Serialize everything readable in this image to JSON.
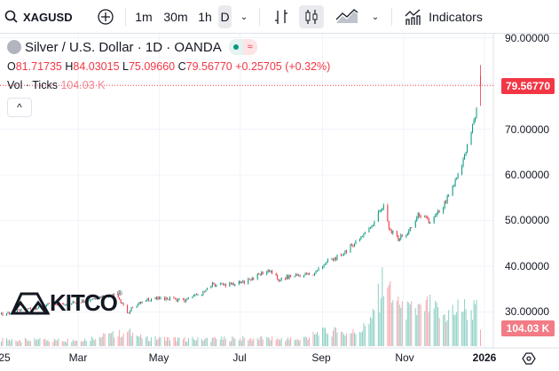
{
  "toolbar": {
    "symbol": "XAGUSD",
    "intervals": [
      "1m",
      "30m",
      "1h",
      "D"
    ],
    "selected_interval": "D",
    "indicators_label": "Indicators",
    "icons": [
      "search-icon",
      "add-compare-icon",
      "chevron-down-icon",
      "bar-chart-icon",
      "candles-icon",
      "area-chart-icon",
      "chevron-down-icon",
      "indicators-icon"
    ]
  },
  "legend": {
    "title": "Silver / U.S. Dollar · 1D · OANDA",
    "o_label": "O",
    "o": "81.71735",
    "h_label": "H",
    "h": "84.03015",
    "l_label": "L",
    "l": "75.09660",
    "c_label": "C",
    "c": "79.56770",
    "change": "+0.25705 (+0.32%)",
    "vol_label": "Vol · Ticks",
    "vol_value": "104.03 K",
    "collapse_label": "^"
  },
  "price_axis": {
    "labels": [
      "90.00000",
      "70.00000",
      "60.00000",
      "50.00000",
      "40.00000",
      "30.00000"
    ],
    "last_price": "79.56770",
    "last_volume": "104.03 K"
  },
  "time_axis": {
    "labels": [
      "25",
      "Mar",
      "May",
      "Jul",
      "Sep",
      "Nov",
      "2026"
    ]
  },
  "logo": "KITCO",
  "colors": {
    "up": "#089981",
    "down": "#f23645",
    "up_volume": "#8ccfc4",
    "down_volume": "#f5a6ad"
  },
  "chart_data": {
    "type": "candlestick",
    "symbol": "XAGUSD",
    "interval": "1D",
    "ylim": [
      27,
      92
    ],
    "close_keypoints": [
      [
        "2025-01-02",
        29.5
      ],
      [
        "2025-01-20",
        30.5
      ],
      [
        "2025-02-05",
        31.5
      ],
      [
        "2025-02-25",
        32.0
      ],
      [
        "2025-03-10",
        32.8
      ],
      [
        "2025-03-27",
        34.0
      ],
      [
        "2025-04-03",
        32.0
      ],
      [
        "2025-04-07",
        29.5
      ],
      [
        "2025-04-10",
        31.0
      ],
      [
        "2025-04-22",
        32.8
      ],
      [
        "2025-05-05",
        33.0
      ],
      [
        "2025-05-20",
        32.5
      ],
      [
        "2025-06-05",
        34.5
      ],
      [
        "2025-06-10",
        36.0
      ],
      [
        "2025-06-20",
        36.0
      ],
      [
        "2025-07-01",
        36.3
      ],
      [
        "2025-07-11",
        37.5
      ],
      [
        "2025-07-22",
        39.2
      ],
      [
        "2025-07-30",
        37.0
      ],
      [
        "2025-08-10",
        38.0
      ],
      [
        "2025-08-25",
        38.3
      ],
      [
        "2025-09-02",
        40.5
      ],
      [
        "2025-09-15",
        42.5
      ],
      [
        "2025-09-30",
        46.5
      ],
      [
        "2025-10-08",
        49.0
      ],
      [
        "2025-10-17",
        53.5
      ],
      [
        "2025-10-21",
        48.0
      ],
      [
        "2025-10-28",
        46.0
      ],
      [
        "2025-11-05",
        47.5
      ],
      [
        "2025-11-13",
        51.5
      ],
      [
        "2025-11-21",
        49.5
      ],
      [
        "2025-12-01",
        53.0
      ],
      [
        "2025-12-10",
        58.5
      ],
      [
        "2025-12-17",
        64.0
      ],
      [
        "2025-12-24",
        71.5
      ],
      [
        "2025-12-29",
        79.5677
      ]
    ],
    "last_candle": {
      "date": "2025-12-29",
      "open": 81.71735,
      "high": 84.03015,
      "low": 75.0966,
      "close": 79.5677
    },
    "volume_keypoints_k": [
      [
        "2025-01-02",
        40
      ],
      [
        "2025-03-01",
        40
      ],
      [
        "2025-04-08",
        90
      ],
      [
        "2025-04-20",
        50
      ],
      [
        "2025-06-01",
        45
      ],
      [
        "2025-07-01",
        50
      ],
      [
        "2025-08-15",
        45
      ],
      [
        "2025-09-05",
        100
      ],
      [
        "2025-09-20",
        80
      ],
      [
        "2025-10-01",
        110
      ],
      [
        "2025-10-10",
        200
      ],
      [
        "2025-10-17",
        440
      ],
      [
        "2025-10-25",
        330
      ],
      [
        "2025-11-05",
        220
      ],
      [
        "2025-11-20",
        260
      ],
      [
        "2025-12-01",
        200
      ],
      [
        "2025-12-15",
        250
      ],
      [
        "2025-12-26",
        230
      ],
      [
        "2025-12-29",
        104.03
      ]
    ]
  }
}
